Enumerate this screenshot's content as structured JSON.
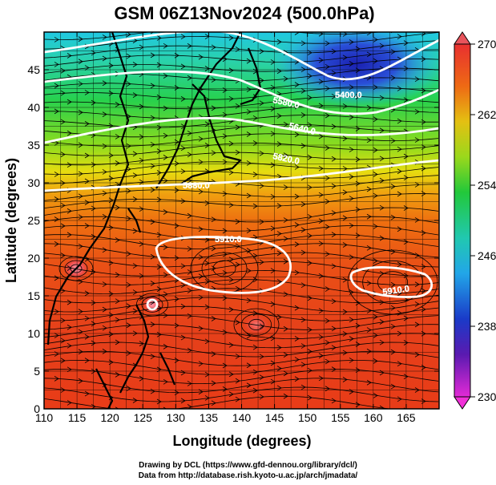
{
  "title": "GSM 06Z13Nov2024 (500.0hPa)",
  "axes": {
    "xlabel": "Longitude (degrees)",
    "ylabel": "Latitude  (degrees)",
    "xticks": [
      110,
      115,
      120,
      125,
      130,
      135,
      140,
      145,
      150,
      155,
      160,
      165
    ],
    "yticks": [
      0,
      5,
      10,
      15,
      20,
      25,
      30,
      35,
      40,
      45
    ]
  },
  "colorbar": {
    "ticks": [
      "270",
      "262",
      "254",
      "246",
      "238",
      "230"
    ],
    "min": 230,
    "max": 270
  },
  "contour_labels": [
    "5400.0",
    "5580.0",
    "5640.0",
    "5820.0",
    "5880.0",
    "5910.0",
    "5910.0"
  ],
  "credits": {
    "line1": "Drawing by DCL (https://www.gfd-dennou.org/library/dcl/)",
    "line2": "Data from http://database.rish.kyoto-u.ac.jp/arch/jmadata/"
  },
  "colors": {
    "cold": "#1a1aa8",
    "mid": "#1ed27a",
    "warm": "#e43a18",
    "contour": "#ffffff"
  }
}
